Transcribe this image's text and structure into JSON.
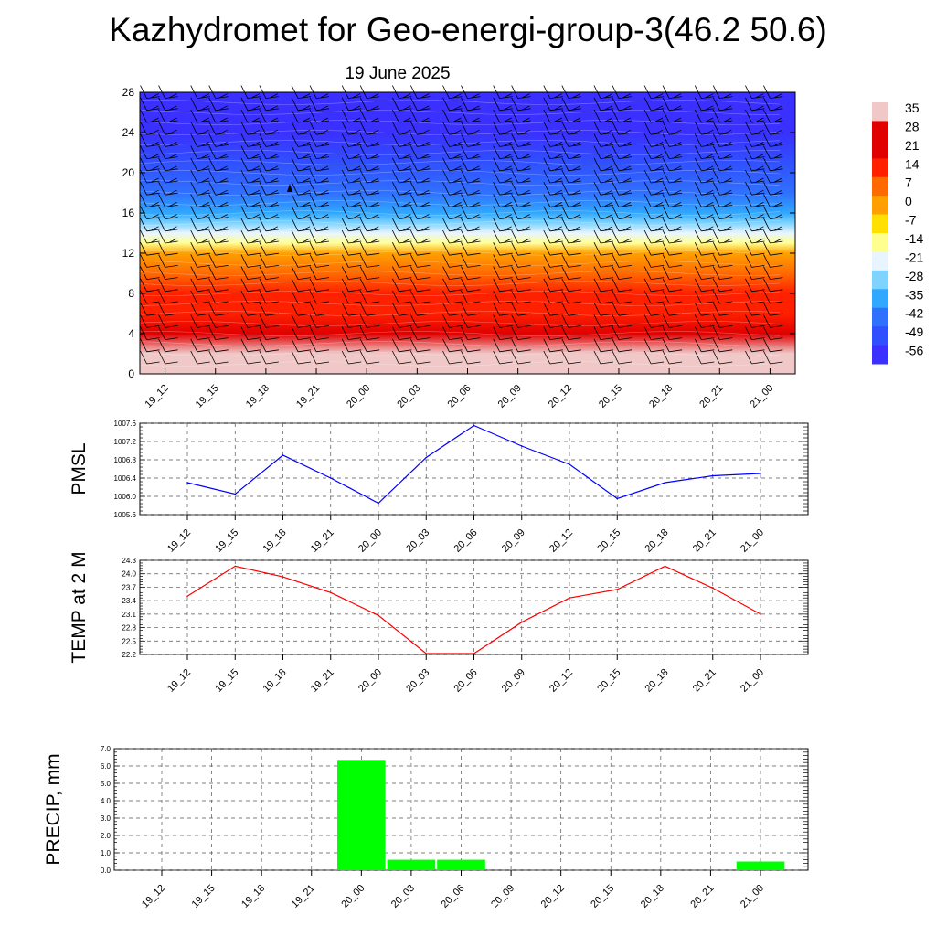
{
  "title": "Kazhydromet for Geo-energi-group-3(46.2 50.6)",
  "subtitle": "19 June 2025",
  "time_labels": [
    "19_12",
    "19_15",
    "19_18",
    "19_21",
    "20_00",
    "20_03",
    "20_06",
    "20_09",
    "20_12",
    "20_15",
    "20_18",
    "20_21",
    "21_00"
  ],
  "chart_data": [
    {
      "type": "heatmap",
      "title": "",
      "ylabel": "",
      "x": [
        "19_12",
        "19_15",
        "19_18",
        "19_21",
        "20_00",
        "20_03",
        "20_06",
        "20_09",
        "20_12",
        "20_15",
        "20_18",
        "20_21",
        "21_00"
      ],
      "ylim": [
        0,
        28
      ],
      "yticks": [
        0,
        4,
        8,
        12,
        16,
        20,
        24,
        28
      ],
      "colorbar_ticks": [
        35,
        28,
        21,
        14,
        7,
        0,
        -7,
        -14,
        -21,
        -28,
        -35,
        -42,
        -49,
        -56
      ],
      "temperature_profile": [
        {
          "level": 0,
          "value": 35
        },
        {
          "level": 2,
          "value": 30
        },
        {
          "level": 4,
          "value": 25
        },
        {
          "level": 6,
          "value": 20
        },
        {
          "level": 8,
          "value": 14
        },
        {
          "level": 10,
          "value": 7
        },
        {
          "level": 12,
          "value": 0
        },
        {
          "level": 13,
          "value": -14
        },
        {
          "level": 14,
          "value": -21
        },
        {
          "level": 15,
          "value": -28
        },
        {
          "level": 16,
          "value": -35
        },
        {
          "level": 18,
          "value": -42
        },
        {
          "level": 21,
          "value": -49
        },
        {
          "level": 24,
          "value": -56
        },
        {
          "level": 28,
          "value": -56
        }
      ],
      "wind_barbs": "shown",
      "colors": {
        "warm": "#ff0000",
        "mid": "#ffff80",
        "cold": "#3030ff",
        "coldest": "#7f30ff"
      }
    },
    {
      "type": "line",
      "ylabel": "PMSL",
      "x": [
        "19_12",
        "19_15",
        "19_18",
        "19_21",
        "20_00",
        "20_03",
        "20_06",
        "20_09",
        "20_12",
        "20_15",
        "20_18",
        "20_21",
        "21_00"
      ],
      "series": [
        {
          "values": [
            1006.3,
            1006.05,
            1006.9,
            1006.4,
            1005.85,
            1006.85,
            1007.55,
            1007.1,
            1006.7,
            1005.95,
            1006.3,
            1006.45,
            1006.5
          ],
          "color": "#0000ff"
        }
      ],
      "ylim": [
        1005.6,
        1007.6
      ],
      "yticks": [
        "1005.6",
        "1006.0",
        "1006.4",
        "1006.8",
        "1007.2",
        "1007.6"
      ],
      "grid": true
    },
    {
      "type": "line",
      "ylabel": "TEMP at 2 M",
      "x": [
        "19_12",
        "19_15",
        "19_18",
        "19_21",
        "20_00",
        "20_03",
        "20_06",
        "20_09",
        "20_12",
        "20_15",
        "20_18",
        "20_21",
        "21_00"
      ],
      "series": [
        {
          "values": [
            23.5,
            24.17,
            23.93,
            23.58,
            23.07,
            22.22,
            22.22,
            22.92,
            23.46,
            23.65,
            24.17,
            23.68,
            23.1
          ],
          "color": "#ff0000"
        }
      ],
      "ylim": [
        22.2,
        24.3
      ],
      "yticks": [
        "22.2",
        "22.5",
        "22.8",
        "23.1",
        "23.4",
        "23.7",
        "24.0",
        "24.3"
      ],
      "grid": true
    },
    {
      "type": "bar",
      "ylabel": "PRECIP, mm",
      "categories": [
        "19_12",
        "19_15",
        "19_18",
        "19_21",
        "20_00",
        "20_03",
        "20_06",
        "20_09",
        "20_12",
        "20_15",
        "20_18",
        "20_21",
        "21_00"
      ],
      "values": [
        0,
        0,
        0,
        0,
        6.35,
        0.6,
        0.6,
        0,
        0,
        0,
        0,
        0,
        0.5
      ],
      "color": "#00ff00",
      "ylim": [
        0,
        7
      ],
      "yticks": [
        "0.0",
        "1.0",
        "2.0",
        "3.0",
        "4.0",
        "5.0",
        "6.0",
        "7.0"
      ],
      "grid": true
    }
  ]
}
